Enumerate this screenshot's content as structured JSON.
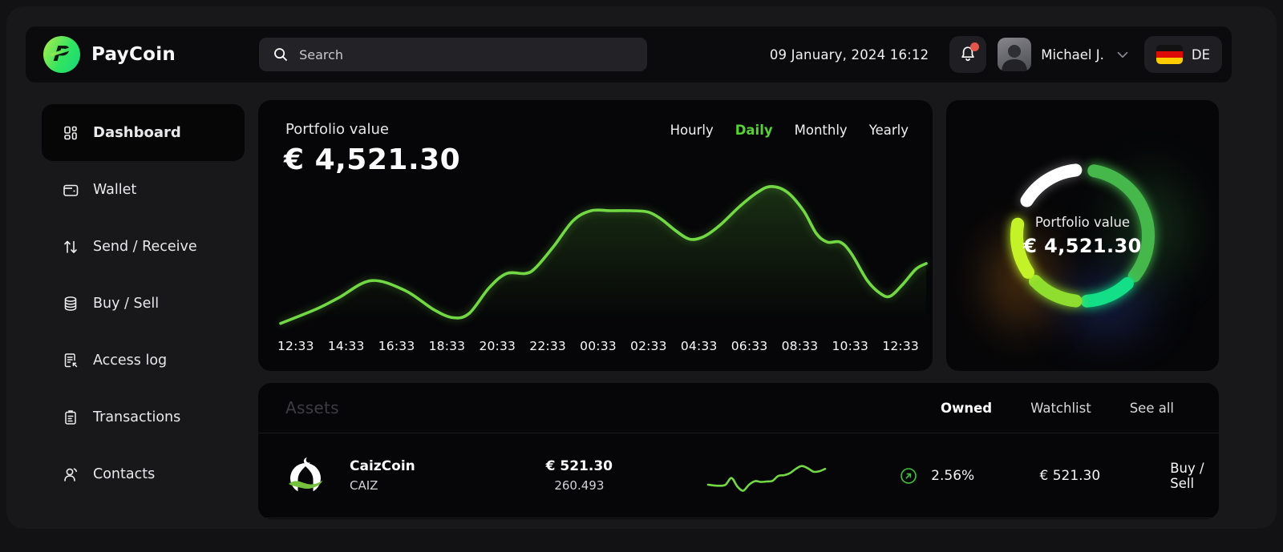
{
  "topbar": {
    "brand": "PayCoin",
    "search_placeholder": "Search",
    "datetime": "09 January, 2024 16:12",
    "user_name": "Michael J.",
    "language": "DE"
  },
  "sidebar": {
    "items": [
      {
        "label": "Dashboard",
        "icon": "dashboard-icon",
        "active": true
      },
      {
        "label": "Wallet",
        "icon": "wallet-icon",
        "active": false
      },
      {
        "label": "Send / Receive",
        "icon": "send-receive-icon",
        "active": false
      },
      {
        "label": "Buy / Sell",
        "icon": "coins-icon",
        "active": false
      },
      {
        "label": "Access log",
        "icon": "access-log-icon",
        "active": false
      },
      {
        "label": "Transactions",
        "icon": "transactions-icon",
        "active": false
      },
      {
        "label": "Contacts",
        "icon": "contacts-icon",
        "active": false
      }
    ]
  },
  "portfolio": {
    "title": "Portfolio value",
    "value": "€ 4,521.30",
    "range_tabs": [
      "Hourly",
      "Daily",
      "Monthly",
      "Yearly"
    ],
    "active_tab": "Daily"
  },
  "donut": {
    "title": "Portfolio value",
    "value": "€ 4,521.30"
  },
  "assets": {
    "title": "Assets",
    "tabs": [
      "Owned",
      "Watchlist",
      "See all"
    ],
    "active_tab": "Owned",
    "rows": [
      {
        "name": "CaizCoin",
        "symbol": "CAIZ",
        "value": "€ 521.30",
        "amount": "260.493",
        "change": "2.56%",
        "change_direction": "up",
        "price": "€ 521.30",
        "action": "Buy / Sell"
      }
    ]
  },
  "colors": {
    "accent_green": "#55d336",
    "line_green": "#72d944",
    "notification_red": "#e5544b",
    "flag_black": "#121212",
    "flag_red": "#dd0a0a",
    "flag_gold": "#ffcc00"
  },
  "chart_data": [
    {
      "type": "area",
      "title": "Portfolio value over time (Daily view)",
      "x_labels": [
        "12:33",
        "14:33",
        "16:33",
        "18:33",
        "20:33",
        "22:33",
        "00:33",
        "02:33",
        "04:33",
        "06:33",
        "08:33",
        "10:33",
        "12:33"
      ],
      "ylabel": "",
      "y_axis_shown": false,
      "line_color": "#72d944",
      "points": [
        [
          0.0,
          3
        ],
        [
          0.055,
          13
        ],
        [
          0.09,
          21
        ],
        [
          0.14,
          33
        ],
        [
          0.193,
          26
        ],
        [
          0.236,
          13
        ],
        [
          0.267,
          7
        ],
        [
          0.292,
          10
        ],
        [
          0.323,
          28
        ],
        [
          0.35,
          38
        ],
        [
          0.379,
          38
        ],
        [
          0.395,
          42
        ],
        [
          0.423,
          57
        ],
        [
          0.453,
          75
        ],
        [
          0.481,
          82
        ],
        [
          0.512,
          82
        ],
        [
          0.544,
          82
        ],
        [
          0.57,
          81
        ],
        [
          0.59,
          76
        ],
        [
          0.612,
          68
        ],
        [
          0.634,
          62
        ],
        [
          0.656,
          64
        ],
        [
          0.681,
          72
        ],
        [
          0.711,
          85
        ],
        [
          0.739,
          95
        ],
        [
          0.76,
          99
        ],
        [
          0.785,
          95
        ],
        [
          0.81,
          82
        ],
        [
          0.83,
          66
        ],
        [
          0.847,
          60
        ],
        [
          0.867,
          60
        ],
        [
          0.884,
          52
        ],
        [
          0.909,
          33
        ],
        [
          0.929,
          24
        ],
        [
          0.944,
          22
        ],
        [
          0.963,
          30
        ],
        [
          0.984,
          41
        ],
        [
          1.0,
          45
        ]
      ]
    },
    {
      "type": "pie",
      "title": "Portfolio allocation donut",
      "center_label": "Portfolio value",
      "center_value": "€ 4,521.30",
      "segments": [
        {
          "name": "segment-white",
          "color": "#ffffff",
          "start_deg": 302,
          "end_deg": 354,
          "percent": 14
        },
        {
          "name": "segment-green",
          "color": "#46b84b",
          "start_deg": 10,
          "end_deg": 128,
          "percent": 33
        },
        {
          "name": "segment-spring",
          "color": "#12df87",
          "start_deg": 137,
          "end_deg": 176,
          "percent": 11
        },
        {
          "name": "segment-lime",
          "color": "#8fdd2e",
          "start_deg": 186,
          "end_deg": 226,
          "percent": 11
        },
        {
          "name": "segment-chartreuse",
          "color": "#c3f229",
          "start_deg": 236,
          "end_deg": 280,
          "percent": 12
        }
      ]
    },
    {
      "type": "line",
      "title": "CaizCoin sparkline",
      "line_color": "#72d944",
      "values": [
        25,
        23,
        22,
        25,
        44,
        20,
        8,
        25,
        35,
        33,
        34,
        36,
        50,
        52,
        58,
        70,
        78,
        72,
        62,
        63,
        70
      ]
    }
  ]
}
